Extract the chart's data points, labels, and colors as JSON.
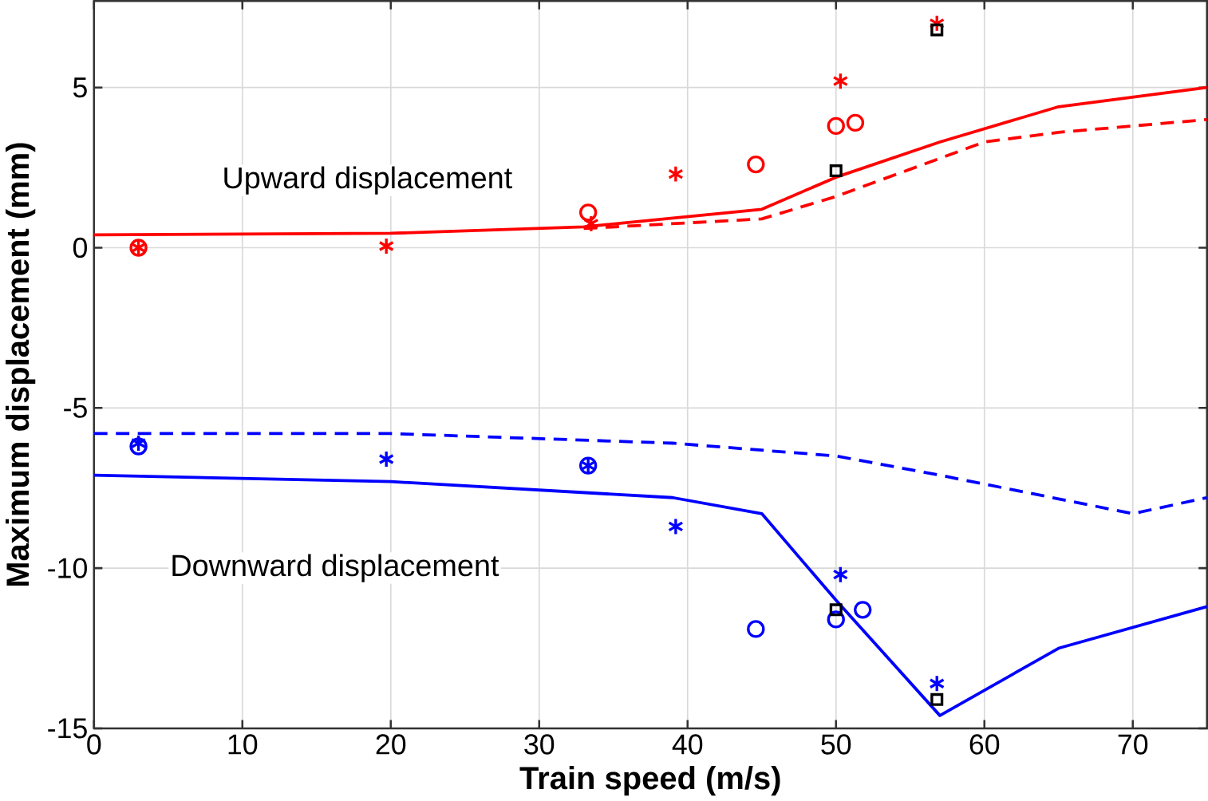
{
  "chart_data": {
    "type": "line",
    "xlabel": "Train speed (m/s)",
    "ylabel": "Maximum displacement (mm)",
    "xlim": [
      0,
      75
    ],
    "ylim": [
      -15,
      7.7
    ],
    "xticks": [
      0,
      10,
      20,
      30,
      40,
      50,
      60,
      70
    ],
    "yticks": [
      -15,
      -10,
      -5,
      0,
      5
    ],
    "grid": true,
    "annotations": [
      "Upward displacement",
      "Downward displacement"
    ],
    "series": [
      {
        "line_style": "solid",
        "marker": "none",
        "color": "#ff0000",
        "x": [
          0,
          20,
          33,
          45,
          50,
          57,
          65,
          75
        ],
        "values": [
          0.4,
          0.45,
          0.65,
          1.2,
          2.2,
          3.3,
          4.4,
          5.0
        ]
      },
      {
        "line_style": "dashed",
        "marker": "none",
        "color": "#ff0000",
        "x": [
          33,
          45,
          50,
          60,
          65,
          75
        ],
        "values": [
          0.6,
          0.9,
          1.6,
          3.3,
          3.6,
          4.0
        ]
      },
      {
        "type": "scatter",
        "marker": "circle",
        "color": "#ff0000",
        "x": [
          3,
          33.3,
          44.6,
          50,
          51.3
        ],
        "values": [
          0,
          1.1,
          2.6,
          3.8,
          3.9
        ]
      },
      {
        "type": "scatter",
        "marker": "cross",
        "color": "#ff0000",
        "x": [
          3,
          19.7,
          33.5,
          39.2,
          50.3,
          56.8
        ],
        "values": [
          0,
          0.05,
          0.75,
          2.3,
          5.2,
          7.0
        ]
      },
      {
        "line_style": "solid",
        "marker": "none",
        "color": "#0000ff",
        "x": [
          0,
          20,
          39,
          45,
          50,
          57,
          65,
          75
        ],
        "values": [
          -7.1,
          -7.3,
          -7.8,
          -8.3,
          -11,
          -14.6,
          -12.5,
          -11.2
        ]
      },
      {
        "line_style": "dashed",
        "marker": "none",
        "color": "#0000ff",
        "x": [
          0,
          20,
          39,
          50,
          57,
          70,
          75
        ],
        "values": [
          -5.8,
          -5.8,
          -6.1,
          -6.5,
          -7.1,
          -8.3,
          -7.8
        ]
      },
      {
        "type": "scatter",
        "marker": "circle",
        "color": "#0000ff",
        "x": [
          3,
          33.3,
          44.6,
          50,
          51.8
        ],
        "values": [
          -6.2,
          -6.8,
          -11.9,
          -11.6,
          -11.3
        ]
      },
      {
        "type": "scatter",
        "marker": "cross",
        "color": "#0000ff",
        "x": [
          3,
          19.7,
          33.3,
          39.2,
          50.3,
          56.8
        ],
        "values": [
          -6.1,
          -6.6,
          -6.8,
          -8.7,
          -10.2,
          -13.6
        ]
      },
      {
        "type": "scatter",
        "marker": "square",
        "color": "#000000",
        "x": [
          50,
          56.8,
          50,
          56.8
        ],
        "values": [
          2.4,
          6.8,
          -11.3,
          -14.1
        ]
      }
    ]
  }
}
